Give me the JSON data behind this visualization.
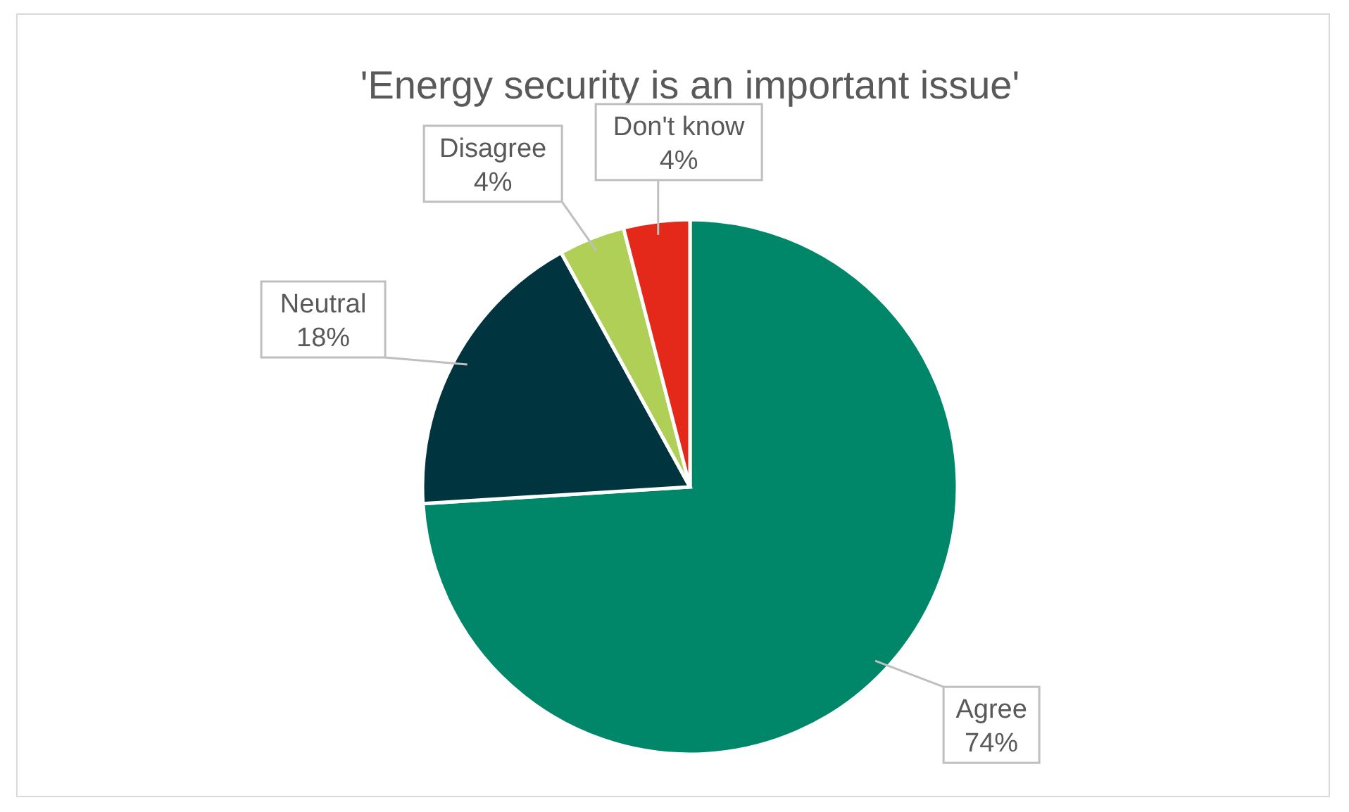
{
  "chart_data": {
    "type": "pie",
    "title": "'Energy security is an important issue'",
    "categories": [
      "Agree",
      "Neutral",
      "Disagree",
      "Don't know"
    ],
    "values": [
      74,
      18,
      4,
      4
    ],
    "colors": [
      "#00876a",
      "#00343f",
      "#afcf57",
      "#e4291a"
    ],
    "value_labels": [
      "74%",
      "18%",
      "4%",
      "4%"
    ]
  }
}
